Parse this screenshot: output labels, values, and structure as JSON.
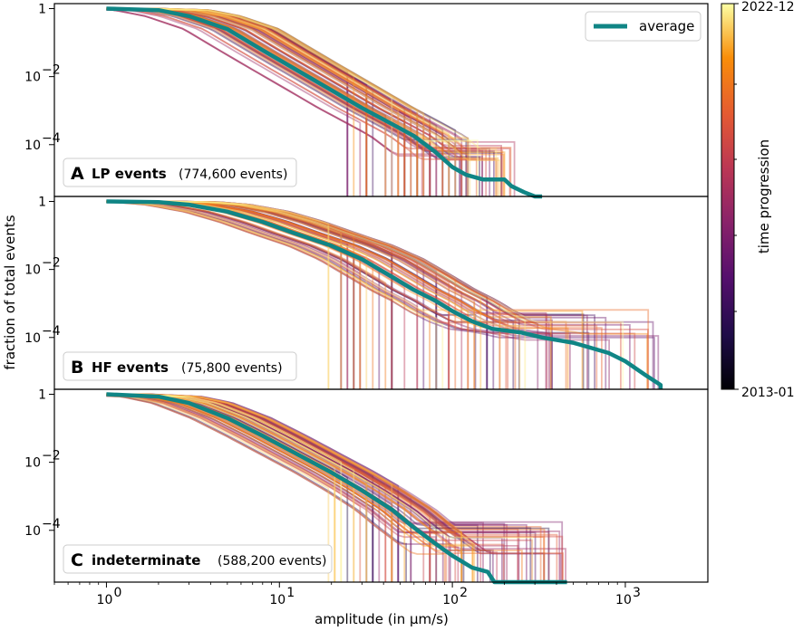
{
  "chart_data": {
    "type": "line",
    "layout": "three stacked panels sharing x axis",
    "xscale": "log",
    "yscale": "log",
    "xlabel": "amplitude (in µm/s)",
    "ylabel": "fraction of total events",
    "xlim": [
      0.5,
      3000
    ],
    "ylim": [
      3e-06,
      1.4
    ],
    "xticks": [
      {
        "value": 1,
        "base": "10",
        "exp": "0"
      },
      {
        "value": 10,
        "base": "10",
        "exp": "1"
      },
      {
        "value": 100,
        "base": "10",
        "exp": "2"
      },
      {
        "value": 1000,
        "base": "10",
        "exp": "3"
      }
    ],
    "yticks": [
      {
        "value": 1,
        "base": "1",
        "exp": ""
      },
      {
        "value": 0.01,
        "base": "10",
        "exp": "−2"
      },
      {
        "value": 0.0001,
        "base": "10",
        "exp": "−4"
      }
    ],
    "legend": {
      "label": "average",
      "color": "#108585",
      "position": "top-right"
    },
    "colorbar": {
      "label": "time progression",
      "min_label": "2013-01",
      "max_label": "2022-12",
      "colormap": "inferno"
    },
    "panels": [
      {
        "letter": "A",
        "name": "LP events",
        "count": "(774,600 events)",
        "average": [
          [
            1,
            1
          ],
          [
            2,
            0.9
          ],
          [
            3,
            0.6
          ],
          [
            5,
            0.25
          ],
          [
            8,
            0.06
          ],
          [
            12,
            0.018
          ],
          [
            20,
            0.004
          ],
          [
            30,
            0.0012
          ],
          [
            45,
            0.0004
          ],
          [
            60,
            0.00018
          ],
          [
            80,
            6e-05
          ],
          [
            100,
            2.2e-05
          ],
          [
            120,
            1.3e-05
          ],
          [
            150,
            9.5e-06
          ],
          [
            200,
            9.5e-06
          ],
          [
            220,
            6e-06
          ],
          [
            260,
            4e-06
          ],
          [
            300,
            3e-06
          ],
          [
            330,
            3e-06
          ]
        ],
        "spread": {
          "scale_min": 0.55,
          "scale_max": 2.0,
          "cut_min": 3e-05,
          "cut_max": 0.00017,
          "end_min": 25,
          "end_max": 230
        }
      },
      {
        "letter": "B",
        "name": "HF events",
        "count": "(75,800 events)",
        "average": [
          [
            1,
            1
          ],
          [
            2,
            0.95
          ],
          [
            3,
            0.8
          ],
          [
            5,
            0.5
          ],
          [
            8,
            0.25
          ],
          [
            12,
            0.12
          ],
          [
            20,
            0.05
          ],
          [
            30,
            0.02
          ],
          [
            45,
            0.006
          ],
          [
            60,
            0.0025
          ],
          [
            80,
            0.0012
          ],
          [
            100,
            0.0006
          ],
          [
            130,
            0.0003
          ],
          [
            170,
            0.00018
          ],
          [
            250,
            0.00014
          ],
          [
            330,
            0.0001
          ],
          [
            500,
            7e-05
          ],
          [
            800,
            3.5e-05
          ],
          [
            1000,
            2e-05
          ],
          [
            1300,
            8e-06
          ],
          [
            1600,
            4e-06
          ]
        ],
        "spread": {
          "scale_min": 0.55,
          "scale_max": 2.3,
          "cut_min": 8e-05,
          "cut_max": 0.0007,
          "end_min": 20,
          "end_max": 1600
        }
      },
      {
        "letter": "C",
        "name": "indeterminate",
        "count": "(588,200 events)",
        "average": [
          [
            1,
            1
          ],
          [
            2,
            0.85
          ],
          [
            3,
            0.55
          ],
          [
            5,
            0.2
          ],
          [
            8,
            0.06
          ],
          [
            12,
            0.02
          ],
          [
            20,
            0.005
          ],
          [
            30,
            0.0015
          ],
          [
            45,
            0.0004
          ],
          [
            60,
            0.00012
          ],
          [
            80,
            4e-05
          ],
          [
            100,
            1.8e-05
          ],
          [
            130,
            8e-06
          ],
          [
            160,
            6e-06
          ],
          [
            175,
            3e-06
          ],
          [
            460,
            3e-06
          ]
        ],
        "spread": {
          "scale_min": 0.6,
          "scale_max": 1.8,
          "cut_min": 2e-05,
          "cut_max": 0.00018,
          "end_min": 20,
          "end_max": 480
        }
      }
    ]
  }
}
